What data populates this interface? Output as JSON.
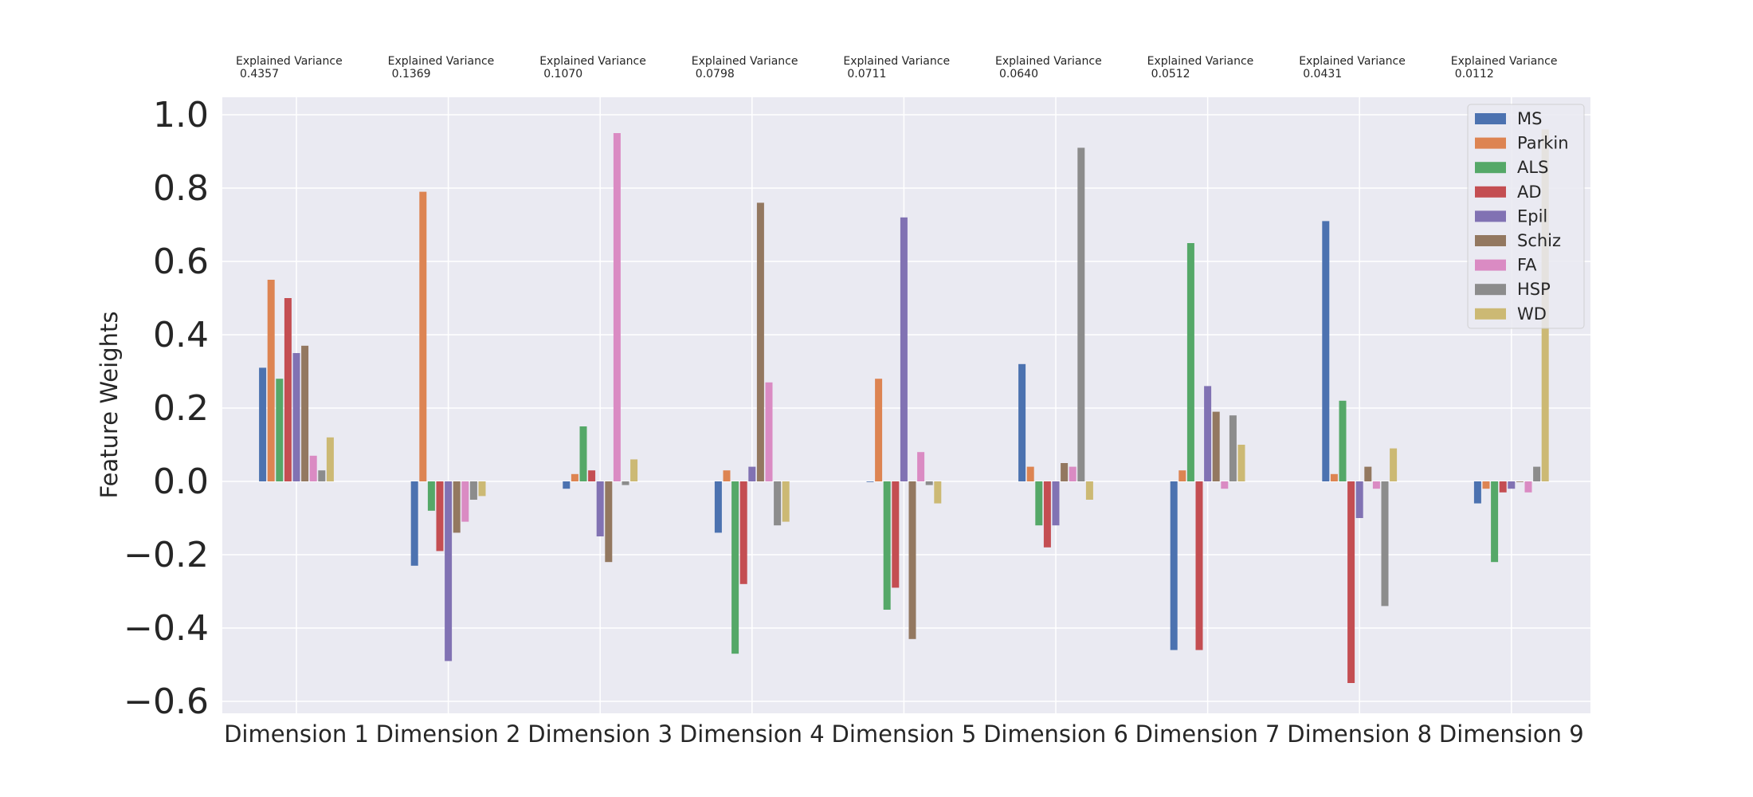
{
  "chart_data": {
    "type": "bar",
    "title": "",
    "xlabel": "",
    "ylabel": "Feature Weights",
    "ylim": [
      -0.62,
      1.04
    ],
    "yticks": [
      1.0,
      0.8,
      0.6,
      0.4,
      0.2,
      0.0,
      -0.2,
      -0.4,
      -0.6
    ],
    "ytick_labels": [
      "1.0",
      "0.8",
      "0.6",
      "0.4",
      "0.2",
      "0.0",
      "−0.2",
      "−0.4",
      "−0.6"
    ],
    "grid": true,
    "legend_position": "top-right",
    "categories": [
      "Dimension 1",
      "Dimension 2",
      "Dimension 3",
      "Dimension 4",
      "Dimension 5",
      "Dimension 6",
      "Dimension 7",
      "Dimension 8",
      "Dimension 9"
    ],
    "explained_variance_label": "Explained Variance",
    "explained_variance": [
      "0.4357",
      "0.1369",
      "0.1070",
      "0.0798",
      "0.0711",
      "0.0640",
      "0.0512",
      "0.0431",
      "0.0112"
    ],
    "series": [
      {
        "name": "MS",
        "color": "#4c72b0",
        "values": [
          0.31,
          -0.23,
          -0.02,
          -0.14,
          0.0,
          0.32,
          -0.46,
          0.71,
          -0.06
        ]
      },
      {
        "name": "Parkin",
        "color": "#dd8452",
        "values": [
          0.55,
          0.79,
          0.02,
          0.03,
          0.28,
          0.04,
          0.03,
          0.02,
          -0.02
        ]
      },
      {
        "name": "ALS",
        "color": "#55a868",
        "values": [
          0.28,
          -0.08,
          0.15,
          -0.47,
          -0.35,
          -0.12,
          0.65,
          0.22,
          -0.22
        ]
      },
      {
        "name": "AD",
        "color": "#c44e52",
        "values": [
          0.5,
          -0.19,
          0.03,
          -0.28,
          -0.29,
          -0.18,
          -0.46,
          -0.55,
          -0.03
        ]
      },
      {
        "name": "Epil",
        "color": "#8172b3",
        "values": [
          0.35,
          -0.49,
          -0.15,
          0.04,
          0.72,
          -0.12,
          0.26,
          -0.1,
          -0.02
        ]
      },
      {
        "name": "Schiz",
        "color": "#937860",
        "values": [
          0.37,
          -0.14,
          -0.22,
          0.76,
          -0.43,
          0.05,
          0.19,
          0.04,
          0.0
        ]
      },
      {
        "name": "FA",
        "color": "#da8bc3",
        "values": [
          0.07,
          -0.11,
          0.95,
          0.27,
          0.08,
          0.04,
          -0.02,
          -0.02,
          -0.03
        ]
      },
      {
        "name": "HSP",
        "color": "#8c8c8c",
        "values": [
          0.03,
          -0.05,
          -0.01,
          -0.12,
          -0.01,
          0.91,
          0.18,
          -0.34,
          0.04
        ]
      },
      {
        "name": "WD",
        "color": "#ccb974",
        "values": [
          0.12,
          -0.04,
          0.06,
          -0.11,
          -0.06,
          -0.05,
          0.1,
          0.09,
          0.96
        ]
      }
    ],
    "colors": {
      "plot_background": "#eaeaf2",
      "grid": "#ffffff",
      "text": "#262626"
    }
  }
}
